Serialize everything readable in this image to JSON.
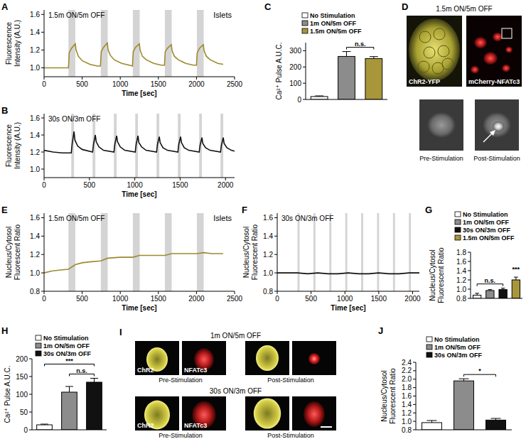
{
  "chart_data": [
    {
      "panel": "A",
      "type": "line",
      "annotations": [
        "1.5m ON/5m OFF",
        "Islets"
      ],
      "xlabel": "Time [sec]",
      "ylabel": [
        "Fluorescence",
        "Intensity (A.U.)"
      ],
      "xlim": [
        0,
        2500
      ],
      "xticks": [
        0,
        500,
        1000,
        1500,
        2000,
        2500
      ],
      "ylim": [
        0.9,
        1.65
      ],
      "yticks": [
        {
          "value": 1,
          "label": "1.0"
        },
        1.2,
        1.4,
        1.6
      ],
      "color": "#9b8a2e",
      "stimulus": [
        [
          320,
          410
        ],
        [
          745,
          835
        ],
        [
          1165,
          1255
        ],
        [
          1585,
          1675
        ],
        [
          2005,
          2095
        ]
      ],
      "x": [
        0,
        100,
        200,
        300,
        320,
        330,
        360,
        410,
        420,
        450,
        500,
        600,
        700,
        740,
        750,
        780,
        830,
        840,
        870,
        920,
        1020,
        1120,
        1160,
        1170,
        1200,
        1250,
        1260,
        1290,
        1340,
        1440,
        1540,
        1580,
        1590,
        1620,
        1670,
        1680,
        1710,
        1760,
        1860,
        1960,
        2000,
        2010,
        2040,
        2090,
        2100,
        2130,
        2180,
        2280,
        2350
      ],
      "values": [
        1.0,
        1.0,
        1.0,
        1.0,
        1.0,
        1.17,
        1.22,
        1.27,
        1.2,
        1.13,
        1.08,
        1.04,
        1.02,
        1.02,
        1.18,
        1.23,
        1.28,
        1.2,
        1.14,
        1.09,
        1.05,
        1.03,
        1.02,
        1.18,
        1.23,
        1.27,
        1.2,
        1.13,
        1.09,
        1.05,
        1.03,
        1.03,
        1.18,
        1.22,
        1.26,
        1.19,
        1.13,
        1.09,
        1.05,
        1.03,
        1.03,
        1.17,
        1.22,
        1.26,
        1.19,
        1.13,
        1.09,
        1.05,
        1.04
      ]
    },
    {
      "panel": "B",
      "type": "line",
      "annotations": [
        "30s ON/3m OFF"
      ],
      "xlabel": "Time [sec]",
      "ylabel": [
        "Fluorescence",
        "Intensity (A.U.)"
      ],
      "xlim": [
        0,
        2100
      ],
      "xticks": [
        0,
        500,
        1000,
        1500,
        2000
      ],
      "ylim": [
        0.9,
        1.65
      ],
      "yticks": [
        {
          "value": 1,
          "label": "1.0"
        },
        1.2,
        1.4,
        1.6
      ],
      "color": "#111111",
      "stimulus": [
        [
          300,
          330
        ],
        [
          535,
          565
        ],
        [
          770,
          800
        ],
        [
          1005,
          1035
        ],
        [
          1240,
          1270
        ],
        [
          1475,
          1505
        ],
        [
          1710,
          1740
        ],
        [
          1945,
          1975
        ]
      ],
      "x": [
        0,
        100,
        200,
        300,
        310,
        330,
        340,
        370,
        420,
        535,
        545,
        565,
        575,
        605,
        655,
        770,
        780,
        800,
        810,
        840,
        890,
        1005,
        1015,
        1035,
        1045,
        1075,
        1125,
        1240,
        1250,
        1270,
        1280,
        1310,
        1360,
        1475,
        1485,
        1505,
        1515,
        1545,
        1595,
        1710,
        1720,
        1740,
        1750,
        1780,
        1830,
        1945,
        1955,
        1975,
        1985,
        2015,
        2065,
        2100
      ],
      "values": [
        1.22,
        1.2,
        1.19,
        1.19,
        1.3,
        1.44,
        1.34,
        1.27,
        1.23,
        1.2,
        1.29,
        1.4,
        1.32,
        1.26,
        1.22,
        1.2,
        1.29,
        1.39,
        1.32,
        1.26,
        1.22,
        1.2,
        1.29,
        1.39,
        1.31,
        1.26,
        1.22,
        1.2,
        1.29,
        1.38,
        1.31,
        1.25,
        1.22,
        1.2,
        1.29,
        1.38,
        1.31,
        1.25,
        1.22,
        1.2,
        1.28,
        1.37,
        1.3,
        1.25,
        1.22,
        1.2,
        1.28,
        1.37,
        1.3,
        1.25,
        1.22,
        1.21
      ]
    },
    {
      "panel": "C",
      "type": "bar",
      "ylabel": [
        "Ca²⁺ Pulse A.U.C."
      ],
      "categories": [
        "No Stimulation",
        "1m ON/5m OFF",
        "1.5m ON/5m OFF"
      ],
      "values": [
        18,
        265,
        252
      ],
      "errors": [
        4,
        30,
        12
      ],
      "colors": [
        "#ffffff",
        "#8c8c8c",
        "#a8963a"
      ],
      "ylim": [
        0,
        350
      ],
      "yticks": [
        0,
        100,
        200,
        300
      ],
      "legend": "top",
      "tick_labels": "y",
      "significance": [
        {
          "label": "n.s.",
          "from": 1,
          "to": 2
        }
      ]
    },
    {
      "panel": "E",
      "type": "line",
      "annotations": [
        "1.5m ON/5m OFF",
        "Islets"
      ],
      "xlabel": "Time [sec]",
      "ylabel": [
        "Nucleus/Cytosol",
        "Fluorescent Ratio"
      ],
      "xlim": [
        0,
        2500
      ],
      "xticks": [
        0,
        500,
        1000,
        1500,
        2000,
        2500
      ],
      "ylim": [
        0.8,
        1.65
      ],
      "yticks": [
        0.8,
        {
          "value": 1,
          "label": "1.0"
        },
        1.2,
        1.4,
        1.6
      ],
      "color": "#9b8a2e",
      "stimulus": [
        [
          320,
          410
        ],
        [
          745,
          835
        ],
        [
          1165,
          1255
        ],
        [
          1585,
          1675
        ],
        [
          2005,
          2095
        ]
      ],
      "x": [
        0,
        100,
        200,
        320,
        410,
        500,
        600,
        745,
        835,
        1000,
        1165,
        1255,
        1400,
        1585,
        1675,
        1800,
        2005,
        2095,
        2200,
        2350
      ],
      "values": [
        1.0,
        1.02,
        1.03,
        1.04,
        1.09,
        1.11,
        1.12,
        1.13,
        1.16,
        1.17,
        1.17,
        1.19,
        1.19,
        1.19,
        1.21,
        1.21,
        1.21,
        1.22,
        1.21,
        1.21
      ]
    },
    {
      "panel": "F",
      "type": "line",
      "annotations": [
        "30s ON/3m OFF"
      ],
      "xlabel": "Time [sec]",
      "ylabel": [
        "Nucleus/Cytosol",
        "Fluorescent Ratio"
      ],
      "xlim": [
        0,
        2100
      ],
      "xticks": [
        0,
        500,
        1000,
        1500,
        2000
      ],
      "ylim": [
        0.8,
        1.65
      ],
      "yticks": [
        0.8,
        {
          "value": 1,
          "label": "1.0"
        },
        1.2,
        1.4,
        1.6
      ],
      "color": "#111111",
      "stimulus": [
        [
          300,
          330
        ],
        [
          535,
          565
        ],
        [
          770,
          800
        ],
        [
          1005,
          1035
        ],
        [
          1240,
          1270
        ],
        [
          1475,
          1505
        ],
        [
          1710,
          1740
        ],
        [
          1945,
          1975
        ]
      ],
      "x": [
        0,
        150,
        300,
        450,
        600,
        750,
        900,
        1050,
        1200,
        1350,
        1500,
        1650,
        1800,
        1950,
        2100
      ],
      "values": [
        1.0,
        1.0,
        1.0,
        0.99,
        1.0,
        0.99,
        0.99,
        1.0,
        0.99,
        0.99,
        1.0,
        0.99,
        0.99,
        1.0,
        1.0
      ]
    },
    {
      "panel": "G",
      "type": "bar",
      "ylabel": [
        "Nucleus/Cytosol",
        "Fluorescent Ratio"
      ],
      "categories": [
        "No Stimulation",
        "1m ON/5m OFF",
        "30s ON/3m OFF",
        "1.5m ON/5m OFF"
      ],
      "values": [
        0.87,
        0.97,
        0.99,
        1.2
      ],
      "errors": [
        0.04,
        0.02,
        0.03,
        0.06
      ],
      "colors": [
        "#ffffff",
        "#8c8c8c",
        "#111111",
        "#a8963a"
      ],
      "ylim": [
        0.8,
        1.8
      ],
      "yticks": [
        0.8,
        {
          "value": 1,
          "label": "1.0"
        },
        1.2,
        1.4,
        1.6,
        1.8
      ],
      "legend": "top",
      "tick_labels": "y",
      "significance": [
        {
          "label": "n.s.",
          "from": 0,
          "to": 2
        },
        {
          "label": "***",
          "from": 3,
          "to": 3
        }
      ]
    },
    {
      "panel": "H",
      "type": "bar",
      "ylabel": [
        "Ca²⁺ Pulse A.U.C."
      ],
      "categories": [
        "No Stimulation",
        "1m ON/5m OFF",
        "30s ON/3m OFF"
      ],
      "values": [
        14,
        106,
        134
      ],
      "errors": [
        2,
        16,
        11
      ],
      "colors": [
        "#ffffff",
        "#8c8c8c",
        "#111111"
      ],
      "ylim": [
        0,
        200
      ],
      "yticks": [
        0,
        50,
        100,
        150,
        200
      ],
      "legend": "top",
      "tick_labels": "y",
      "significance": [
        {
          "label": "n.s.",
          "from": 1,
          "to": 2
        },
        {
          "label": "***",
          "from": 0,
          "to": 2
        }
      ]
    },
    {
      "panel": "J",
      "type": "bar",
      "ylabel": [
        "Nucleus/Cytosol",
        "Fluorescent Ratio"
      ],
      "categories": [
        "No Stimulation",
        "1m ON/5m OFF",
        "30s ON/3m OFF"
      ],
      "values": [
        0.97,
        1.96,
        1.03
      ],
      "errors": [
        0.05,
        0.05,
        0.04
      ],
      "colors": [
        "#ffffff",
        "#8c8c8c",
        "#111111"
      ],
      "ylim": [
        0.8,
        2.4
      ],
      "yticks": [
        0.8,
        {
          "value": 1,
          "label": "1.0"
        },
        1.2,
        1.4,
        1.6,
        1.8,
        {
          "value": 2,
          "label": "2.0"
        },
        2.2,
        2.4
      ],
      "legend": "top",
      "tick_labels": "y",
      "significance": [
        {
          "label": "*",
          "from": 1,
          "to": 2
        }
      ]
    }
  ],
  "image_panels": [
    {
      "panel": "D",
      "title": "1.5m ON/5m OFF",
      "images": [
        "ChR2-YFP",
        "mCherry-NFATc3"
      ],
      "captions": [
        "Pre-Stimulation",
        "Post-Stimulation"
      ]
    },
    {
      "panel": "I",
      "rows": [
        {
          "title": "1m ON/5m OFF",
          "labels": [
            "ChR2",
            "NFATc3"
          ],
          "captions": [
            "Pre-Stimulation",
            "Post-Stimulation"
          ]
        },
        {
          "title": "30s ON/3m OFF",
          "labels": [
            "ChR2",
            "NFATc3"
          ],
          "captions": [
            "Pre-Stimulation",
            "Post-Stimulation"
          ]
        }
      ]
    }
  ]
}
